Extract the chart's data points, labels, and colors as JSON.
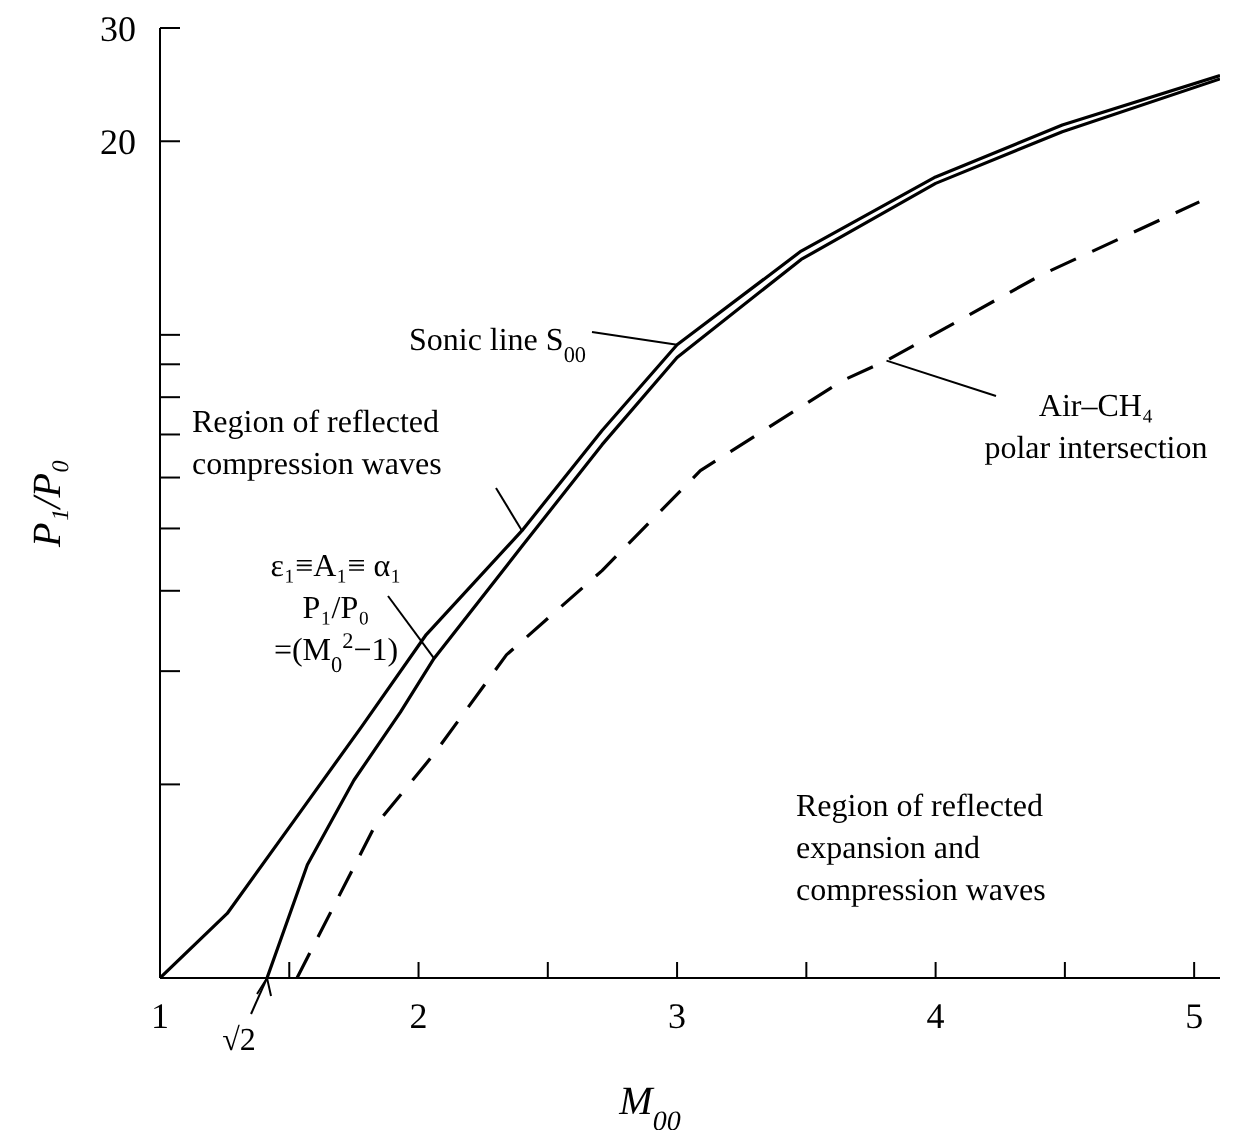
{
  "chart_data": {
    "type": "line",
    "xlabel": "M$_{00}$",
    "ylabel": "P₁/P₀",
    "log": "y",
    "xlim": [
      1,
      5.1
    ],
    "ylim": [
      1,
      30
    ],
    "xticks": [
      1,
      {
        "value": 1.5,
        "label": null
      },
      2,
      {
        "value": 2.5,
        "label": null
      },
      3,
      {
        "value": 3.5,
        "label": null
      },
      4,
      {
        "value": 4.5,
        "label": null
      },
      5
    ],
    "yticks": [
      {
        "value": 2,
        "label": null
      },
      {
        "value": 3,
        "label": null
      },
      {
        "value": 4,
        "label": null
      },
      {
        "value": 5,
        "label": null
      },
      {
        "value": 6,
        "label": null
      },
      {
        "value": 7,
        "label": null
      },
      {
        "value": 8,
        "label": null
      },
      {
        "value": 9,
        "label": null
      },
      {
        "value": 10,
        "label": null
      },
      20,
      30
    ],
    "series": [
      {
        "name": "Sonic line S$_{00}$",
        "color": "#000000",
        "x": [
          1,
          1.26,
          1.52,
          1.78,
          2.03,
          2.4,
          2.71,
          3.0,
          3.48,
          4.0,
          4.49,
          5.1
        ],
        "values": [
          1,
          1.26,
          1.76,
          2.46,
          3.42,
          4.96,
          7.1,
          9.65,
          13.5,
          17.6,
          21.2,
          25.3
        ]
      },
      {
        "color": "#000000",
        "x": [
          1.414,
          1.57,
          1.75,
          1.93,
          2.06,
          2.4,
          2.71,
          3.0,
          3.48,
          4.0,
          4.49,
          5.1
        ],
        "values": [
          1,
          1.5,
          2.03,
          2.59,
          3.14,
          4.69,
          6.75,
          9.22,
          13.1,
          17.2,
          20.7,
          25.0
        ]
      },
      {
        "name": "Air–CH₄\npolar intersection",
        "color": "#000000",
        "line_style": "dashed",
        "x": [
          1.53,
          1.83,
          2.06,
          2.34,
          2.71,
          3.09,
          3.64,
          3.81,
          4.41,
          5.02
        ],
        "values": [
          1,
          1.72,
          2.23,
          3.18,
          4.3,
          6.15,
          8.49,
          9.12,
          12.4,
          16.1
        ]
      }
    ],
    "annotations": [
      "Region of reflected\ncompression waves",
      "Region of reflected\nexpansion and\ncompression waves",
      {
        "text": "√2",
        "x": 1.414,
        "y": 1
      },
      {
        "text": "ε₁≡A₁≡ α₁\nP₁/P₀\n=(M$_{0}$$^{2}$−1)",
        "x": 2.06,
        "y": 3.14
      }
    ]
  }
}
